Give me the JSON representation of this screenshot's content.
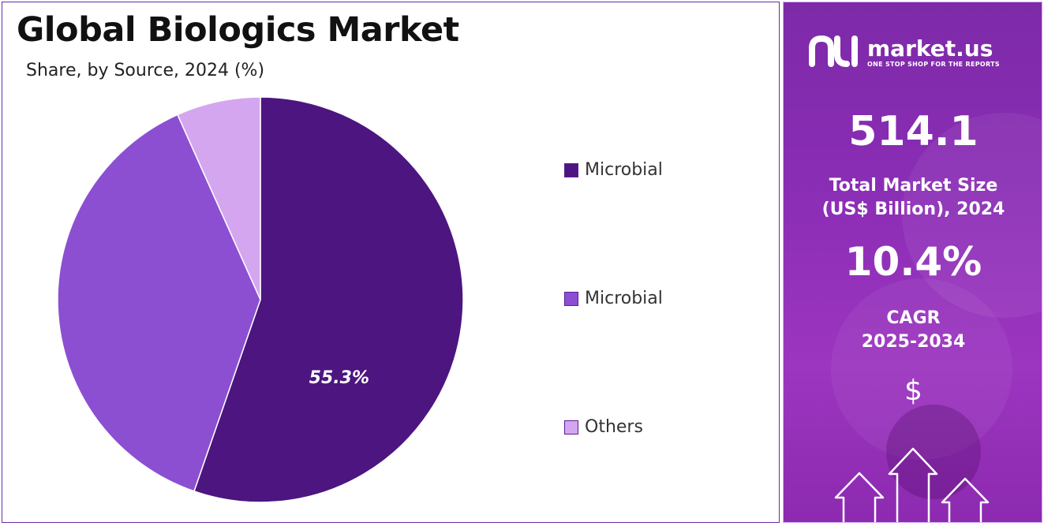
{
  "title": "Global Biologics Market",
  "subtitle": "Share, by Source, 2024 (%)",
  "chart_data": {
    "type": "pie",
    "title": "Global Biologics Market",
    "subtitle": "Share, by Source, 2024 (%)",
    "slices": [
      {
        "label": "Microbial",
        "value": 55.3,
        "color": "#4d1580",
        "data_label": "55.3%"
      },
      {
        "label": "Microbial",
        "value": 38.0,
        "color": "#8c4fd1",
        "data_label": ""
      },
      {
        "label": "Others",
        "value": 6.7,
        "color": "#d4a6ef",
        "data_label": ""
      }
    ],
    "legend_position": "right"
  },
  "sidebar": {
    "logo_name": "market.us",
    "logo_tagline": "ONE STOP SHOP FOR THE REPORTS",
    "market_size_value": "514.1",
    "market_size_label_line1": "Total Market Size",
    "market_size_label_line2": "(US$ Billion), 2024",
    "cagr_value": "10.4%",
    "cagr_label_line1": "CAGR",
    "cagr_label_line2": "2025-2034",
    "currency_symbol": "$",
    "icons": [
      "market-us-logo-icon",
      "dollar-icon",
      "up-arrow-icon"
    ]
  },
  "colors": {
    "accent": "#4d1580",
    "panel_gradient_top": "#7d2aa8",
    "panel_gradient_bottom": "#9c35c0"
  }
}
